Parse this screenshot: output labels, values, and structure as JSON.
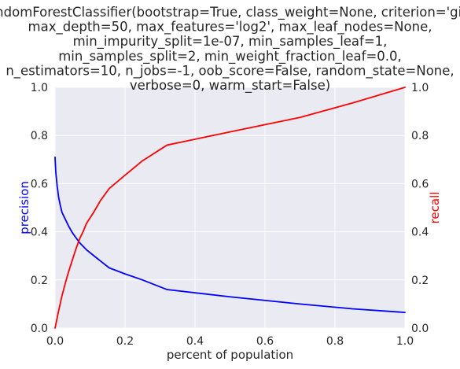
{
  "chart_data": {
    "type": "line",
    "title_lines": [
      "RandomForestClassifier(bootstrap=True, class_weight=None, criterion='gini',",
      "max_depth=50, max_features='log2', max_leaf_nodes=None,",
      "min_impurity_split=1e-07, min_samples_leaf=1,",
      "min_samples_split=2, min_weight_fraction_leaf=0.0,",
      "n_estimators=10, n_jobs=-1, oob_score=False, random_state=None,",
      "verbose=0, warm_start=False)"
    ],
    "xlabel": "percent of population",
    "ylabel_left": "precision",
    "ylabel_right": "recall",
    "xlim": [
      0,
      1
    ],
    "ylim_left": [
      0,
      1
    ],
    "ylim_right": [
      0,
      1
    ],
    "xticks": [
      "0.0",
      "0.2",
      "0.4",
      "0.6",
      "0.8",
      "1.0"
    ],
    "yticks_left": [
      "0.0",
      "0.2",
      "0.4",
      "0.6",
      "0.8",
      "1.0"
    ],
    "yticks_right": [
      "0.0",
      "0.2",
      "0.4",
      "0.6",
      "0.8",
      "1.0"
    ],
    "grid": true,
    "background_color": "#eaeaf2",
    "series": [
      {
        "name": "precision",
        "axis": "left",
        "color": "#0000ff",
        "x": [
          0.0,
          0.001,
          0.002,
          0.004,
          0.006,
          0.008,
          0.01,
          0.015,
          0.02,
          0.03,
          0.04,
          0.05,
          0.06,
          0.07,
          0.09,
          0.12,
          0.155,
          0.2,
          0.25,
          0.32,
          0.5,
          0.7,
          0.85,
          1.0
        ],
        "y": [
          0.71,
          0.68,
          0.65,
          0.62,
          0.59,
          0.57,
          0.545,
          0.51,
          0.48,
          0.45,
          0.42,
          0.395,
          0.375,
          0.355,
          0.325,
          0.29,
          0.25,
          0.225,
          0.2,
          0.16,
          0.13,
          0.1,
          0.08,
          0.065
        ]
      },
      {
        "name": "recall",
        "axis": "right",
        "color": "#ff0000",
        "x": [
          0.0,
          0.005,
          0.01,
          0.02,
          0.03,
          0.04,
          0.05,
          0.06,
          0.07,
          0.08,
          0.09,
          0.11,
          0.13,
          0.155,
          0.2,
          0.25,
          0.32,
          0.5,
          0.7,
          0.85,
          1.0
        ],
        "y": [
          0.0,
          0.035,
          0.07,
          0.135,
          0.19,
          0.24,
          0.285,
          0.33,
          0.37,
          0.4,
          0.435,
          0.48,
          0.53,
          0.58,
          0.635,
          0.695,
          0.76,
          0.815,
          0.875,
          0.935,
          1.0
        ]
      }
    ]
  }
}
